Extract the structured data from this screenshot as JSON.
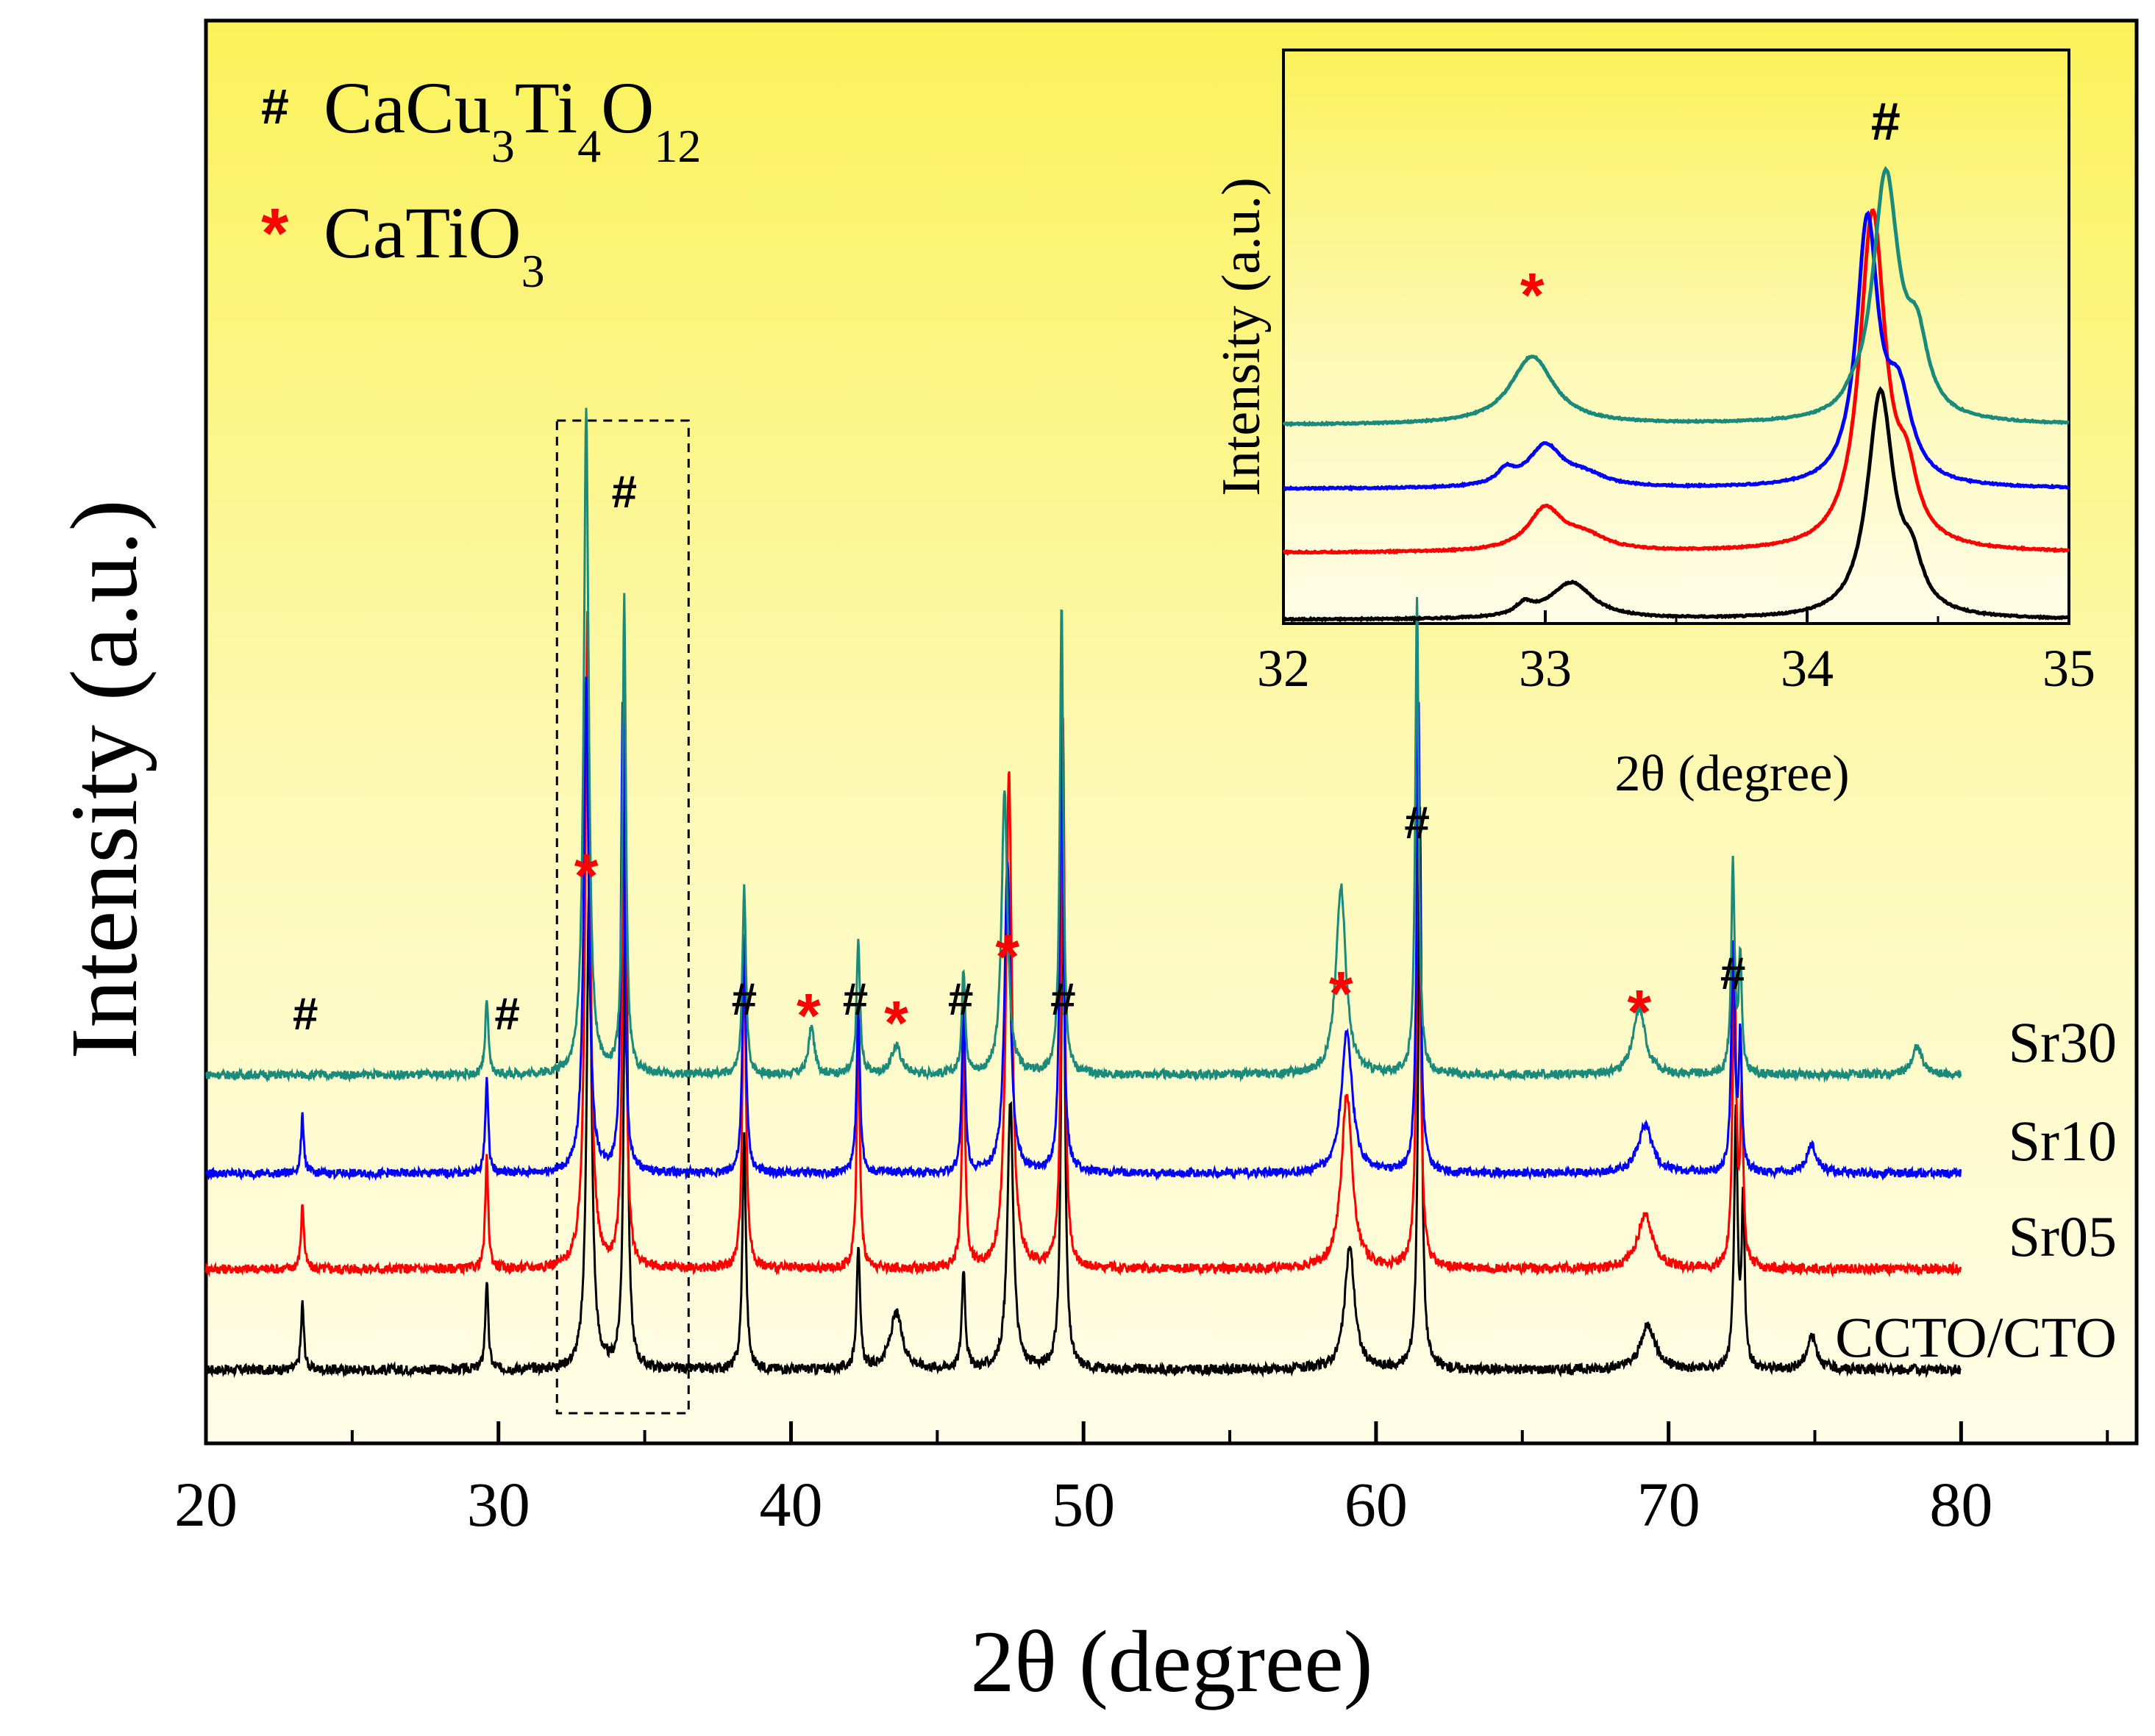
{
  "chart_data": [
    {
      "type": "line",
      "id": "main",
      "xlabel": "2θ (degree)",
      "ylabel": "Intensity (a.u.)",
      "xlim": [
        20,
        86
      ],
      "xticks": [
        20,
        30,
        40,
        50,
        60,
        70,
        80
      ],
      "minor_xticks": [
        25,
        35,
        45,
        55,
        65,
        75,
        85
      ],
      "x_end": 80,
      "legend": [
        {
          "symbol": "#",
          "color": "#000000",
          "label": "CaCu",
          "sub1": "3",
          "mid1": "Ti",
          "sub2": "4",
          "mid2": "O",
          "sub3": "12"
        },
        {
          "symbol": "*",
          "color": "#ff0000",
          "label": "CaTiO",
          "sub1": "3"
        }
      ],
      "series": [
        {
          "name": "CCTO/CTO",
          "color": "#000000",
          "baseline": 0.0,
          "peaks": [
            [
              23.3,
              0.12,
              0.06
            ],
            [
              29.6,
              0.16,
              0.06
            ],
            [
              33.1,
              0.86,
              0.1
            ],
            [
              34.35,
              1.0,
              0.07
            ],
            [
              38.4,
              0.42,
              0.07
            ],
            [
              42.3,
              0.22,
              0.07
            ],
            [
              43.6,
              0.1,
              0.25
            ],
            [
              45.9,
              0.18,
              0.07
            ],
            [
              47.5,
              0.48,
              0.12
            ],
            [
              49.3,
              1.0,
              0.07
            ],
            [
              59.1,
              0.22,
              0.2
            ],
            [
              61.5,
              1.0,
              0.07
            ],
            [
              69.3,
              0.08,
              0.3
            ],
            [
              72.3,
              0.45,
              0.07
            ],
            [
              72.55,
              0.3,
              0.06
            ],
            [
              74.9,
              0.06,
              0.2
            ]
          ]
        },
        {
          "name": "Sr05",
          "color": "#ff0000",
          "baseline": 1.0,
          "peaks": [
            [
              23.3,
              0.12,
              0.06
            ],
            [
              29.6,
              0.2,
              0.06
            ],
            [
              33.05,
              1.2,
              0.1
            ],
            [
              34.3,
              1.0,
              0.07
            ],
            [
              38.4,
              0.6,
              0.07
            ],
            [
              42.3,
              0.4,
              0.07
            ],
            [
              45.9,
              0.4,
              0.07
            ],
            [
              47.45,
              0.9,
              0.12
            ],
            [
              49.3,
              1.0,
              0.07
            ],
            [
              59.0,
              0.32,
              0.22
            ],
            [
              61.45,
              1.0,
              0.07
            ],
            [
              69.2,
              0.1,
              0.3
            ],
            [
              72.25,
              0.58,
              0.07
            ],
            [
              72.5,
              0.3,
              0.06
            ]
          ]
        },
        {
          "name": "Sr10",
          "color": "#0000ff",
          "baseline": 2.0,
          "peaks": [
            [
              23.3,
              0.12,
              0.06
            ],
            [
              29.6,
              0.2,
              0.06
            ],
            [
              33.0,
              1.05,
              0.1
            ],
            [
              34.25,
              1.0,
              0.07
            ],
            [
              38.4,
              0.5,
              0.07
            ],
            [
              42.3,
              0.34,
              0.07
            ],
            [
              45.9,
              0.34,
              0.07
            ],
            [
              47.4,
              0.66,
              0.12
            ],
            [
              49.25,
              1.0,
              0.07
            ],
            [
              59.0,
              0.3,
              0.22
            ],
            [
              61.45,
              1.0,
              0.07
            ],
            [
              69.2,
              0.1,
              0.3
            ],
            [
              72.2,
              0.48,
              0.07
            ],
            [
              72.45,
              0.28,
              0.06
            ],
            [
              74.9,
              0.06,
              0.2
            ]
          ]
        },
        {
          "name": "Sr30",
          "color": "#1a8a7a",
          "baseline": 3.0,
          "peaks": [
            [
              29.6,
              0.16,
              0.06
            ],
            [
              33.0,
              1.4,
              0.1
            ],
            [
              34.3,
              1.0,
              0.07
            ],
            [
              38.4,
              0.4,
              0.07
            ],
            [
              40.7,
              0.1,
              0.12
            ],
            [
              42.3,
              0.28,
              0.07
            ],
            [
              43.6,
              0.06,
              0.2
            ],
            [
              45.9,
              0.22,
              0.07
            ],
            [
              47.3,
              0.6,
              0.12
            ],
            [
              49.25,
              1.0,
              0.07
            ],
            [
              58.8,
              0.4,
              0.2
            ],
            [
              61.4,
              1.0,
              0.07
            ],
            [
              69.0,
              0.14,
              0.25
            ],
            [
              72.2,
              0.44,
              0.07
            ],
            [
              72.45,
              0.24,
              0.06
            ],
            [
              78.5,
              0.06,
              0.2
            ]
          ]
        }
      ],
      "annotations": [
        {
          "x": 23.4,
          "symbol": "#",
          "color": "#000000"
        },
        {
          "x": 30.3,
          "symbol": "#",
          "color": "#000000"
        },
        {
          "x": 33.0,
          "symbol": "*",
          "color": "#ff0000"
        },
        {
          "x": 34.3,
          "symbol": "#",
          "color": "#000000"
        },
        {
          "x": 38.4,
          "symbol": "#",
          "color": "#000000"
        },
        {
          "x": 40.6,
          "symbol": "*",
          "color": "#ff0000"
        },
        {
          "x": 42.2,
          "symbol": "#",
          "color": "#000000"
        },
        {
          "x": 43.6,
          "symbol": "*",
          "color": "#ff0000"
        },
        {
          "x": 45.8,
          "symbol": "#",
          "color": "#000000"
        },
        {
          "x": 47.4,
          "symbol": "*",
          "color": "#ff0000"
        },
        {
          "x": 49.3,
          "symbol": "#",
          "color": "#000000"
        },
        {
          "x": 58.8,
          "symbol": "*",
          "color": "#ff0000"
        },
        {
          "x": 61.4,
          "symbol": "#",
          "color": "#000000"
        },
        {
          "x": 69.0,
          "symbol": "*",
          "color": "#ff0000"
        },
        {
          "x": 72.2,
          "symbol": "#",
          "color": "#000000"
        }
      ],
      "highlight_range": [
        32,
        36.5
      ]
    },
    {
      "type": "line",
      "id": "inset",
      "xlabel": "2θ (degree)",
      "ylabel": "Intensity (a.u.)",
      "xlim": [
        32,
        35
      ],
      "xticks": [
        32,
        33,
        34,
        35
      ],
      "series": [
        {
          "name": "CCTO/CTO",
          "color": "#000000",
          "peaks": [
            [
              32.92,
              0.08,
              0.04
            ],
            [
              33.1,
              0.26,
              0.1
            ],
            [
              34.28,
              1.6,
              0.06
            ],
            [
              34.4,
              0.3,
              0.05
            ]
          ]
        },
        {
          "name": "Sr05",
          "color": "#ff0000",
          "peaks": [
            [
              33.0,
              0.3,
              0.08
            ],
            [
              33.15,
              0.1,
              0.1
            ],
            [
              34.25,
              2.4,
              0.06
            ],
            [
              34.38,
              0.4,
              0.05
            ]
          ]
        },
        {
          "name": "Sr10",
          "color": "#0000ff",
          "peaks": [
            [
              32.85,
              0.1,
              0.04
            ],
            [
              33.0,
              0.3,
              0.08
            ],
            [
              33.15,
              0.08,
              0.1
            ],
            [
              34.23,
              1.9,
              0.05
            ],
            [
              34.35,
              0.6,
              0.06
            ]
          ]
        },
        {
          "name": "Sr30",
          "color": "#1a8a7a",
          "peaks": [
            [
              32.95,
              0.5,
              0.1
            ],
            [
              34.17,
              0.05,
              0.03
            ],
            [
              34.3,
              1.8,
              0.06
            ],
            [
              34.42,
              0.5,
              0.05
            ]
          ]
        }
      ],
      "annotations": [
        {
          "x": 32.95,
          "symbol": "*",
          "color": "#ff0000"
        },
        {
          "x": 34.3,
          "symbol": "#",
          "color": "#000000"
        }
      ]
    }
  ]
}
